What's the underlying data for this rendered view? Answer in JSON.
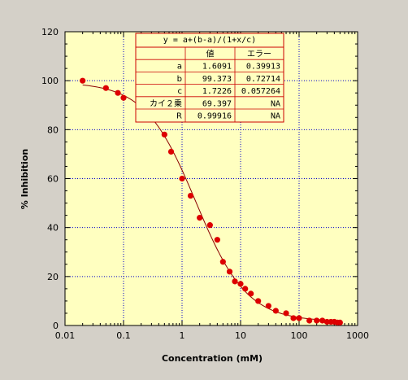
{
  "chart_data": {
    "type": "scatter",
    "title": "",
    "xlabel": "Concentration (mM)",
    "ylabel": "% Inhibition",
    "xscale": "log",
    "xlim": [
      0.01,
      1000
    ],
    "ylim": [
      0,
      120
    ],
    "x_ticks": [
      "0.01",
      "0.1",
      "1",
      "10",
      "100",
      "1000"
    ],
    "y_ticks": [
      "0",
      "20",
      "40",
      "60",
      "80",
      "100",
      "120"
    ],
    "grid": true,
    "plot_background": "#ffffc0",
    "marker_color": "#dd0000",
    "line_color": "#8b0000",
    "series": [
      {
        "points": [
          [
            0.02,
            100
          ],
          [
            0.05,
            97
          ],
          [
            0.08,
            95
          ],
          [
            0.1,
            93
          ],
          [
            0.2,
            90
          ],
          [
            0.3,
            86
          ],
          [
            0.5,
            78
          ],
          [
            0.65,
            71
          ],
          [
            1.0,
            60
          ],
          [
            1.4,
            53
          ],
          [
            2.0,
            44
          ],
          [
            3.0,
            41
          ],
          [
            4.0,
            35
          ],
          [
            5.0,
            26
          ],
          [
            6.5,
            22
          ],
          [
            8.0,
            18
          ],
          [
            10,
            17
          ],
          [
            12,
            15
          ],
          [
            15,
            13
          ],
          [
            20,
            10
          ],
          [
            30,
            8
          ],
          [
            40,
            6
          ],
          [
            60,
            5
          ],
          [
            80,
            3
          ],
          [
            100,
            3
          ],
          [
            150,
            2
          ],
          [
            200,
            2
          ],
          [
            250,
            2
          ],
          [
            300,
            1.5
          ],
          [
            350,
            1.5
          ],
          [
            400,
            1.5
          ],
          [
            450,
            1.2
          ],
          [
            500,
            1.2
          ]
        ]
      }
    ],
    "fit": {
      "equation": "y = a+(b-a)/(1+x/c)",
      "params": {
        "a": 1.6091,
        "b": 99.373,
        "c": 1.7226
      },
      "table": {
        "header": [
          "",
          "値",
          "エラー"
        ],
        "rows": [
          [
            "a",
            "1.6091",
            "0.39913"
          ],
          [
            "b",
            "99.373",
            "0.72714"
          ],
          [
            "c",
            "1.7226",
            "0.057264"
          ],
          [
            "カイ２乗",
            "69.397",
            "NA"
          ],
          [
            "R",
            "0.99916",
            "NA"
          ]
        ]
      }
    }
  }
}
